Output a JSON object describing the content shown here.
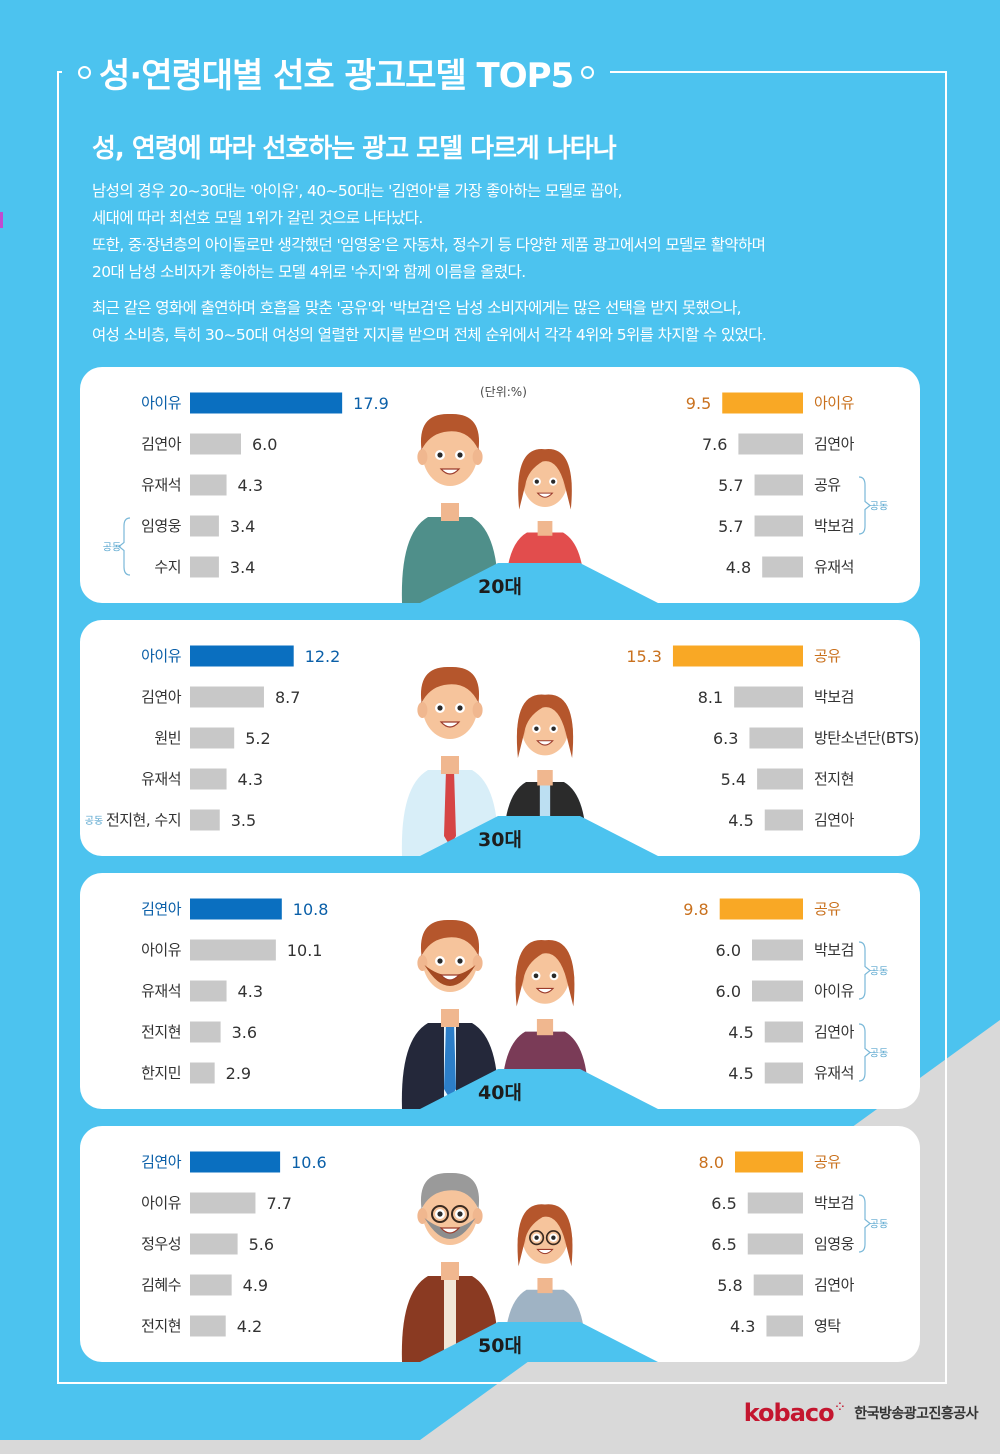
{
  "title": "성·연령대별 선호 광고모델 TOP5",
  "subtitle": "성, 연령에 따라 선호하는 광고 모델 다르게 나타나",
  "paragraph1": [
    "남성의 경우 20~30대는 '아이유', 40~50대는 '김연아'를 가장 좋아하는 모델로 꼽아,",
    "세대에 따라 최선호 모델 1위가 갈린 것으로 나타났다.",
    "또한, 중·장년층의 아이돌로만 생각했던 '임영웅'은 자동차, 정수기 등 다양한 제품 광고에서의 모델로 활약하며",
    "20대 남성 소비자가 좋아하는 모델 4위로 '수지'와 함께 이름을 올렸다."
  ],
  "paragraph2": [
    "최근 같은 영화에 출연하며 호흡을 맞춘 '공유'와 '박보검'은 남성 소비자에게는 많은 선택을 받지 못했으나,",
    "여성 소비층, 특히 30~50대 여성의 열렬한 지지를 받으며 전체 순위에서 각각 4위와 5위를 차지할 수 있었다."
  ],
  "unit_label": "(단위:%)",
  "tie_label": "공동",
  "colors": {
    "male": "#0a6fc0",
    "female": "#f9a825",
    "other": "#c8c8c8",
    "female_text": "#c9711e",
    "male_text": "#0a5fa8"
  },
  "logo": {
    "word": "kobaco",
    "name": "한국방송광고진흥공사"
  },
  "chart_data": [
    {
      "type": "bar",
      "age": "20대",
      "male": {
        "categories": [
          "아이유",
          "김연아",
          "유재석",
          "임영웅",
          "수지"
        ],
        "values": [
          17.9,
          6.0,
          4.3,
          3.4,
          3.4
        ],
        "labels": [
          "17.9",
          "6.0",
          "4.3",
          "3.4",
          "3.4"
        ],
        "tie": [
          3,
          4
        ]
      },
      "female": {
        "categories": [
          "아이유",
          "김연아",
          "공유",
          "박보검",
          "유재석"
        ],
        "values": [
          9.5,
          7.6,
          5.7,
          5.7,
          4.8
        ],
        "labels": [
          "9.5",
          "7.6",
          "5.7",
          "5.7",
          "4.8"
        ],
        "tie": [
          2,
          3
        ]
      }
    },
    {
      "type": "bar",
      "age": "30대",
      "male": {
        "categories": [
          "아이유",
          "김연아",
          "원빈",
          "유재석",
          "전지현, 수지"
        ],
        "values": [
          12.2,
          8.7,
          5.2,
          4.3,
          3.5
        ],
        "labels": [
          "12.2",
          "8.7",
          "5.2",
          "4.3",
          "3.5"
        ],
        "tie_inline": 4
      },
      "female": {
        "categories": [
          "공유",
          "박보검",
          "방탄소년단(BTS)",
          "전지현",
          "김연아"
        ],
        "values": [
          15.3,
          8.1,
          6.3,
          5.4,
          4.5
        ],
        "labels": [
          "15.3",
          "8.1",
          "6.3",
          "5.4",
          "4.5"
        ]
      }
    },
    {
      "type": "bar",
      "age": "40대",
      "male": {
        "categories": [
          "김연아",
          "아이유",
          "유재석",
          "전지현",
          "한지민"
        ],
        "values": [
          10.8,
          10.1,
          4.3,
          3.6,
          2.9
        ],
        "labels": [
          "10.8",
          "10.1",
          "4.3",
          "3.6",
          "2.9"
        ]
      },
      "female": {
        "categories": [
          "공유",
          "박보검",
          "아이유",
          "김연아",
          "유재석"
        ],
        "values": [
          9.8,
          6.0,
          6.0,
          4.5,
          4.5
        ],
        "labels": [
          "9.8",
          "6.0",
          "6.0",
          "4.5",
          "4.5"
        ],
        "tie": [
          1,
          2
        ],
        "tie2": [
          3,
          4
        ]
      }
    },
    {
      "type": "bar",
      "age": "50대",
      "male": {
        "categories": [
          "김연아",
          "아이유",
          "정우성",
          "김혜수",
          "전지현"
        ],
        "values": [
          10.6,
          7.7,
          5.6,
          4.9,
          4.2
        ],
        "labels": [
          "10.6",
          "7.7",
          "5.6",
          "4.9",
          "4.2"
        ]
      },
      "female": {
        "categories": [
          "공유",
          "박보검",
          "임영웅",
          "김연아",
          "영탁"
        ],
        "values": [
          8.0,
          6.5,
          6.5,
          5.8,
          4.3
        ],
        "labels": [
          "8.0",
          "6.5",
          "6.5",
          "5.8",
          "4.3"
        ],
        "tie": [
          1,
          2
        ]
      }
    }
  ]
}
